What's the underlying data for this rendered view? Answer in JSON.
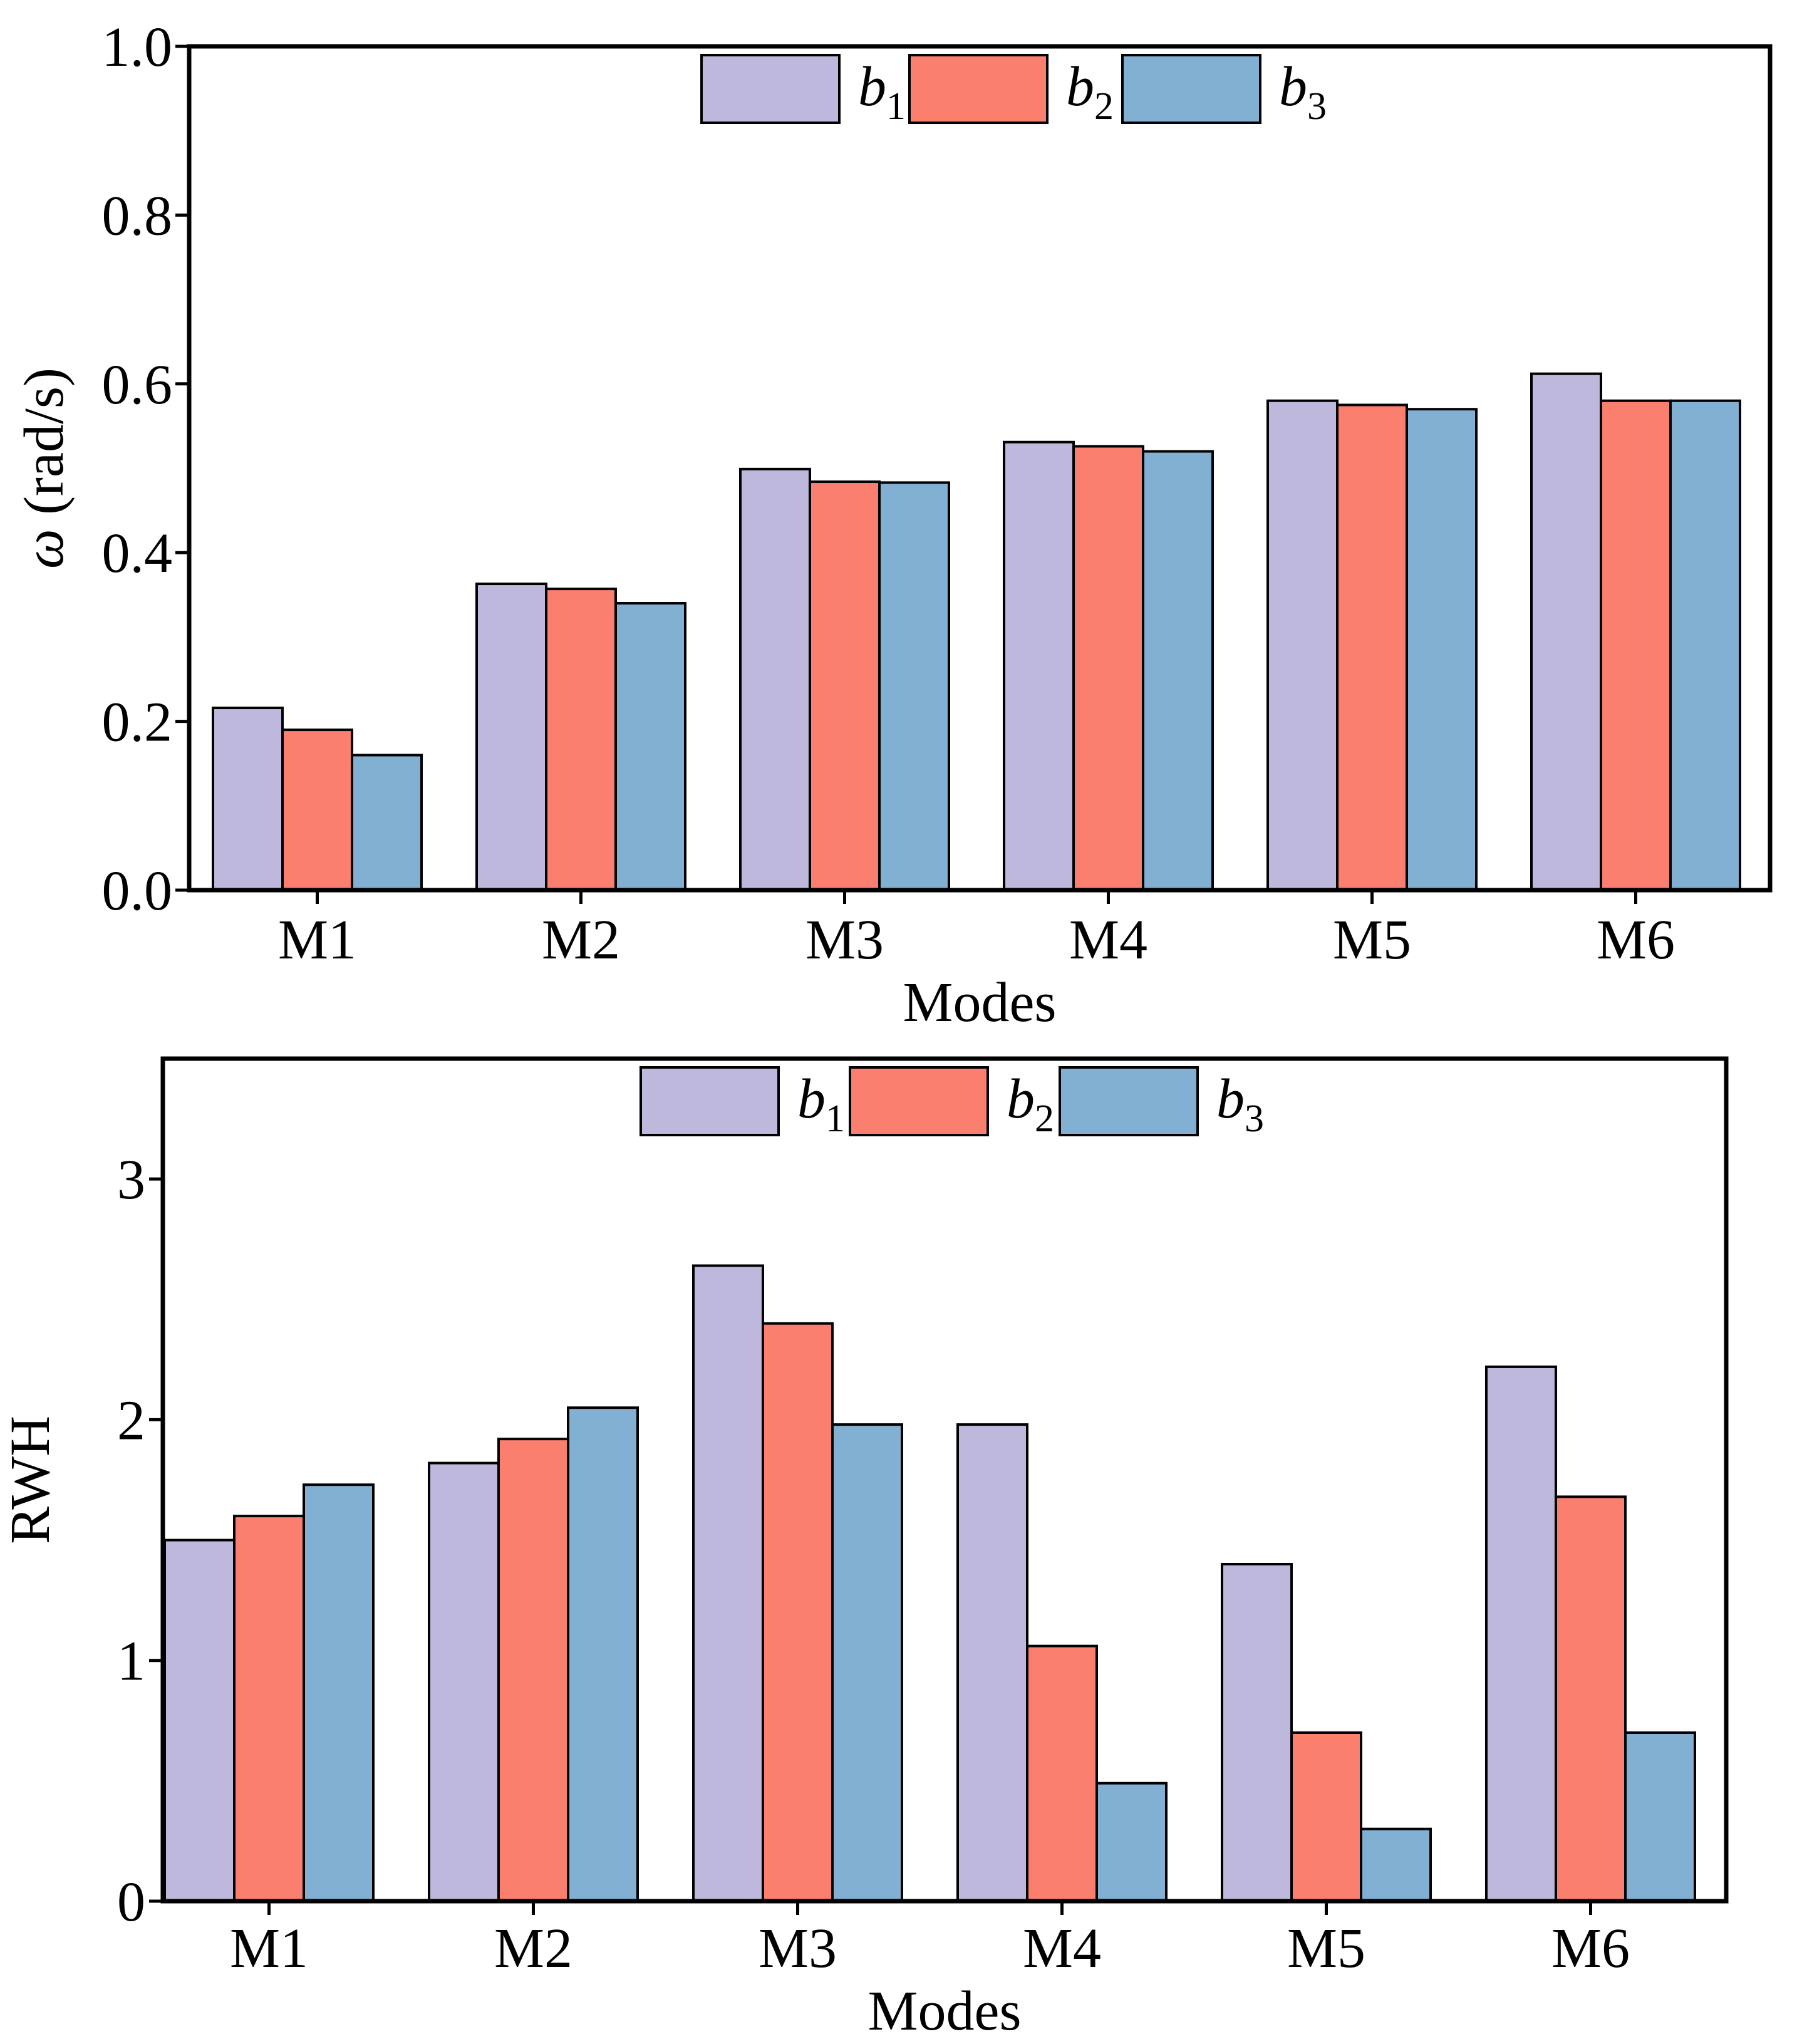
{
  "colors": {
    "b1": "#BEB8DC",
    "b2": "#FA7F6F",
    "b3": "#82B0D2"
  },
  "chart_data": [
    {
      "type": "bar",
      "title": "",
      "xlabel": "Modes",
      "ylabel_symbol": "ω",
      "ylabel_unit": "(rad/s)",
      "categories": [
        "M1",
        "M2",
        "M3",
        "M4",
        "M5",
        "M6"
      ],
      "ylim": [
        0,
        1.0
      ],
      "yticks": [
        {
          "value": 0.0,
          "label": "0.0"
        },
        {
          "value": 0.2,
          "label": "0.2"
        },
        {
          "value": 0.4,
          "label": "0.4"
        },
        {
          "value": 0.6,
          "label": "0.6"
        },
        {
          "value": 0.8,
          "label": "0.8"
        },
        {
          "value": 1.0,
          "label": "1.0"
        }
      ],
      "legend_position": "top-center",
      "series": [
        {
          "key": "b1",
          "name": "b",
          "sub": "1",
          "values": [
            0.216,
            0.363,
            0.499,
            0.531,
            0.58,
            0.612
          ]
        },
        {
          "key": "b2",
          "name": "b",
          "sub": "2",
          "values": [
            0.19,
            0.357,
            0.484,
            0.526,
            0.575,
            0.58
          ]
        },
        {
          "key": "b3",
          "name": "b",
          "sub": "3",
          "values": [
            0.16,
            0.34,
            0.483,
            0.52,
            0.57,
            0.58
          ]
        }
      ]
    },
    {
      "type": "bar",
      "title": "",
      "xlabel": "Modes",
      "ylabel": "RWH",
      "categories": [
        "M1",
        "M2",
        "M3",
        "M4",
        "M5",
        "M6"
      ],
      "ylim": [
        0,
        3.5
      ],
      "yticks": [
        {
          "value": 0,
          "label": "0"
        },
        {
          "value": 1,
          "label": "1"
        },
        {
          "value": 2,
          "label": "2"
        },
        {
          "value": 3,
          "label": "3"
        }
      ],
      "legend_position": "top-center",
      "series": [
        {
          "key": "b1",
          "name": "b",
          "sub": "1",
          "values": [
            1.5,
            1.82,
            2.64,
            1.98,
            1.4,
            2.22
          ]
        },
        {
          "key": "b2",
          "name": "b",
          "sub": "2",
          "values": [
            1.6,
            1.92,
            2.4,
            1.06,
            0.7,
            1.68
          ]
        },
        {
          "key": "b3",
          "name": "b",
          "sub": "3",
          "values": [
            1.73,
            2.05,
            1.98,
            0.49,
            0.3,
            0.7
          ]
        }
      ]
    }
  ]
}
